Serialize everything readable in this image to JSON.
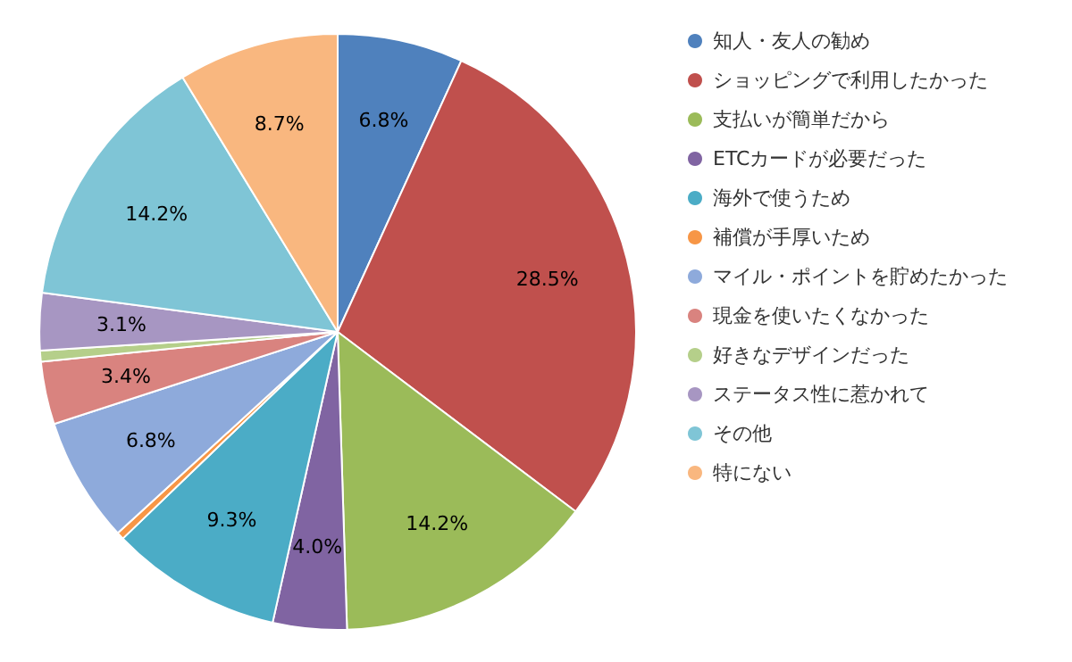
{
  "chart_data": {
    "type": "pie",
    "categories": [
      "知人・友人の勧め",
      "ショッピングで利用したかった",
      "支払いが簡単だから",
      "ETCカードが必要だった",
      "海外で使うため",
      "補償が手厚いため",
      "マイル・ポイントを貯めたかった",
      "現金を使いたくなかった",
      "好きなデザインだった",
      "ステータス性に惹かれて",
      "その他",
      "特にない"
    ],
    "values": [
      6.8,
      28.5,
      14.2,
      4.0,
      9.3,
      0.4,
      6.8,
      3.4,
      0.6,
      3.1,
      14.2,
      8.7
    ],
    "colors": [
      "#4f81bd",
      "#c0504d",
      "#9bbb59",
      "#8064a2",
      "#4bacc6",
      "#f79646",
      "#8eaadb",
      "#d9837f",
      "#b5cf8a",
      "#a796c2",
      "#7fc5d6",
      "#f9b77f"
    ],
    "value_labels": [
      "6.8%",
      "28.5%",
      "14.2%",
      "4.0%",
      "9.3%",
      null,
      "6.8%",
      "3.4%",
      null,
      "3.1%",
      "14.2%",
      "8.7%"
    ],
    "legend": "right"
  }
}
